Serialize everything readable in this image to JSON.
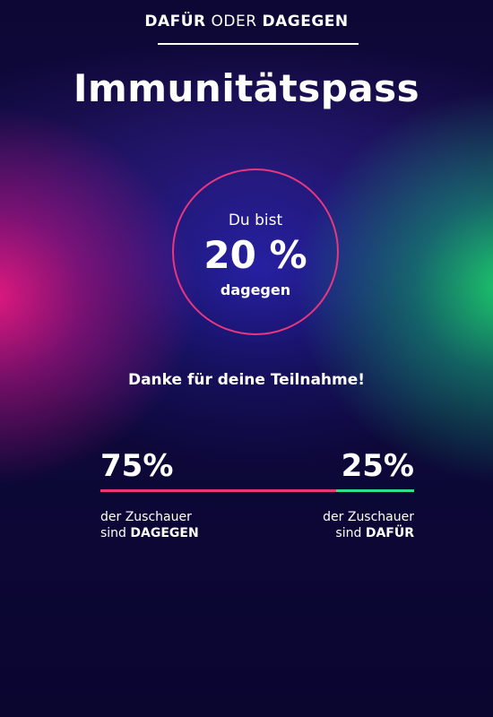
{
  "header": {
    "kicker_part1": "DAFÜR",
    "kicker_part2": "ODER",
    "kicker_part3": "DAGEGEN",
    "title": "Immunitätspass"
  },
  "result": {
    "prefix": "Du bist",
    "percent": "20 %",
    "stance": "dagegen"
  },
  "thanks": "Danke für deine Teilnahme!",
  "poll": {
    "against_percent": "75%",
    "for_percent": "25%",
    "against_value": 75,
    "for_value": 25,
    "against_caption_line1": "der Zuschauer",
    "against_caption_prefix": "sind",
    "against_caption_strong": "DAGEGEN",
    "for_caption_line1": "der Zuschauer",
    "for_caption_prefix": "sind",
    "for_caption_strong": "DAFÜR"
  },
  "colors": {
    "against": "#e8367f",
    "for": "#2fe08a",
    "background": "#0b0733"
  }
}
